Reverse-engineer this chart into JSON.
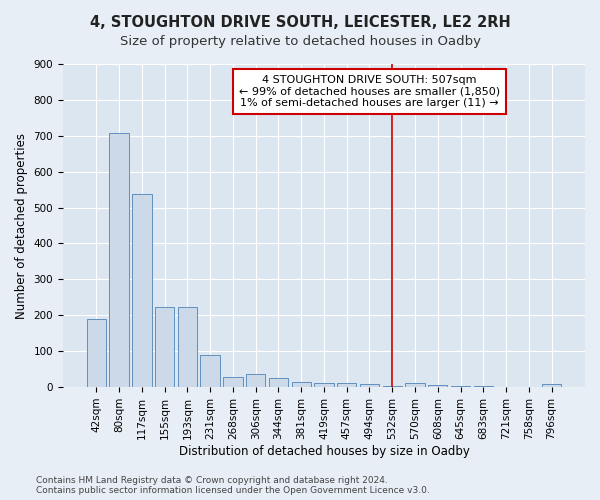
{
  "title": "4, STOUGHTON DRIVE SOUTH, LEICESTER, LE2 2RH",
  "subtitle": "Size of property relative to detached houses in Oadby",
  "xlabel": "Distribution of detached houses by size in Oadby",
  "ylabel": "Number of detached properties",
  "bar_labels": [
    "42sqm",
    "80sqm",
    "117sqm",
    "155sqm",
    "193sqm",
    "231sqm",
    "268sqm",
    "306sqm",
    "344sqm",
    "381sqm",
    "419sqm",
    "457sqm",
    "494sqm",
    "532sqm",
    "570sqm",
    "608sqm",
    "645sqm",
    "683sqm",
    "721sqm",
    "758sqm",
    "796sqm"
  ],
  "bar_values": [
    190,
    707,
    538,
    224,
    224,
    90,
    27,
    37,
    25,
    15,
    12,
    12,
    10,
    2,
    12,
    7,
    2,
    2,
    0,
    0,
    10
  ],
  "bar_color": "#ccd9e8",
  "bar_edge_color": "#6090c0",
  "vline_x": 13.0,
  "vline_color": "#cc0000",
  "annotation_text": "4 STOUGHTON DRIVE SOUTH: 507sqm\n← 99% of detached houses are smaller (1,850)\n1% of semi-detached houses are larger (11) →",
  "annotation_box_facecolor": "#ffffff",
  "annotation_box_edgecolor": "#cc0000",
  "ylim": [
    0,
    900
  ],
  "yticks": [
    0,
    100,
    200,
    300,
    400,
    500,
    600,
    700,
    800,
    900
  ],
  "bg_color": "#e8eef5",
  "plot_bg_color": "#dce6f0",
  "footer_text": "Contains HM Land Registry data © Crown copyright and database right 2024.\nContains public sector information licensed under the Open Government Licence v3.0.",
  "title_fontsize": 10.5,
  "subtitle_fontsize": 9.5,
  "label_fontsize": 8.5,
  "tick_fontsize": 7.5,
  "footer_fontsize": 6.5,
  "annotation_fontsize": 8
}
